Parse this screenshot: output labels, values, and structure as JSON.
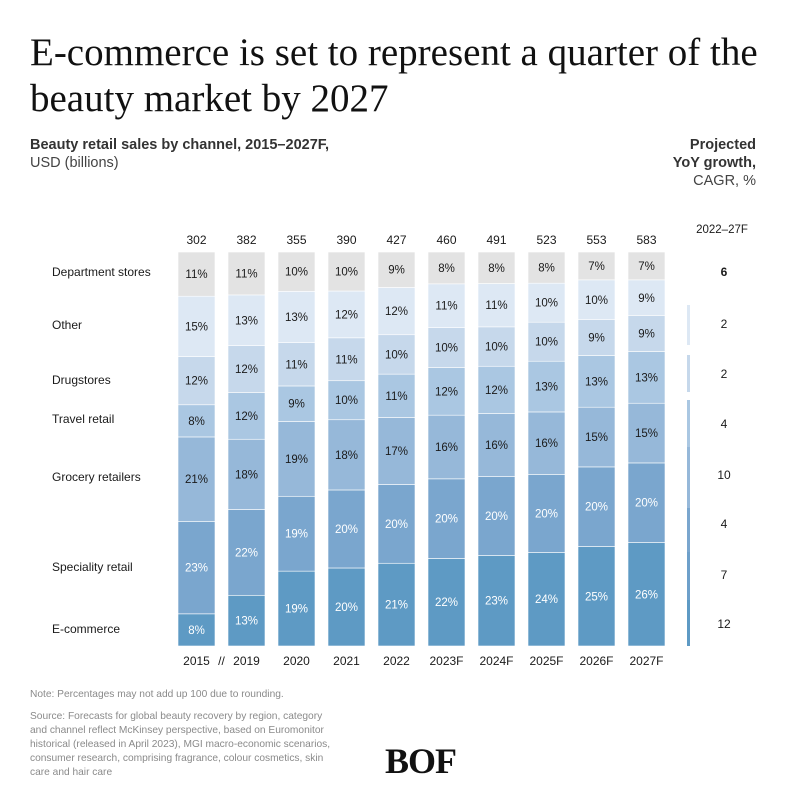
{
  "header": {
    "title": "E-commerce is set to represent a quarter of the beauty market by 2027",
    "subtitle_line1": "Beauty retail sales by channel, 2015–2027F,",
    "subtitle_line2": "USD (billions)",
    "projected_line1": "Projected",
    "projected_line2": "YoY growth,",
    "projected_line3": "CAGR, %"
  },
  "chart_data": {
    "type": "bar",
    "stacked": true,
    "normalized": true,
    "title": "Beauty retail sales by channel, 2015–2027F, USD (billions)",
    "categories": [
      "2015",
      "2019",
      "2020",
      "2021",
      "2022",
      "2023F",
      "2024F",
      "2025F",
      "2026F",
      "2027F"
    ],
    "axis_break_label": "//",
    "totals": [
      302,
      382,
      355,
      390,
      427,
      460,
      491,
      523,
      553,
      583
    ],
    "series": [
      {
        "name": "E-commerce",
        "color": "#5e9ac4",
        "values": [
          8,
          13,
          19,
          20,
          21,
          22,
          23,
          24,
          25,
          26
        ]
      },
      {
        "name": "Speciality retail",
        "color": "#7aa6ce",
        "values": [
          23,
          22,
          19,
          20,
          20,
          20,
          20,
          20,
          20,
          20
        ]
      },
      {
        "name": "Grocery retailers",
        "color": "#96b8d9",
        "values": [
          21,
          18,
          19,
          18,
          17,
          16,
          16,
          16,
          15,
          15
        ]
      },
      {
        "name": "Travel retail",
        "color": "#aac7e2",
        "values": [
          8,
          12,
          9,
          10,
          11,
          12,
          12,
          13,
          13,
          13
        ]
      },
      {
        "name": "Drugstores",
        "color": "#c6d8eb",
        "values": [
          12,
          12,
          11,
          11,
          10,
          10,
          10,
          10,
          9,
          9
        ]
      },
      {
        "name": "Other",
        "color": "#dde8f4",
        "values": [
          15,
          13,
          13,
          12,
          12,
          11,
          11,
          10,
          10,
          9
        ]
      },
      {
        "name": "Department stores",
        "color": "#e3e3e3",
        "values": [
          11,
          11,
          10,
          10,
          9,
          8,
          8,
          8,
          7,
          7
        ]
      }
    ],
    "cagr_header": "2022–27F",
    "cagr": [
      {
        "channel": "Department stores",
        "value": "6",
        "bold": true
      },
      {
        "channel": "Other",
        "value": "2"
      },
      {
        "channel": "Drugstores",
        "value": "2"
      },
      {
        "channel": "Travel retail",
        "value": "4"
      },
      {
        "channel": "Grocery retailers",
        "value": "10"
      },
      {
        "channel": "Speciality retail",
        "value": "4"
      },
      {
        "channel": "E-commerce",
        "value": "7"
      },
      {
        "channel": "E-commerce",
        "value": "12"
      }
    ]
  },
  "footer": {
    "note": "Note: Percentages may not add up 100 due to rounding.",
    "source": "Source: Forecasts for global beauty recovery by region, category and channel reflect McKinsey perspective, based on Euromonitor historical (released in April 2023), MGI macro-economic scenarios, consumer research, comprising fragrance, colour cosmetics, skin care and hair care",
    "logo": "BOF"
  }
}
